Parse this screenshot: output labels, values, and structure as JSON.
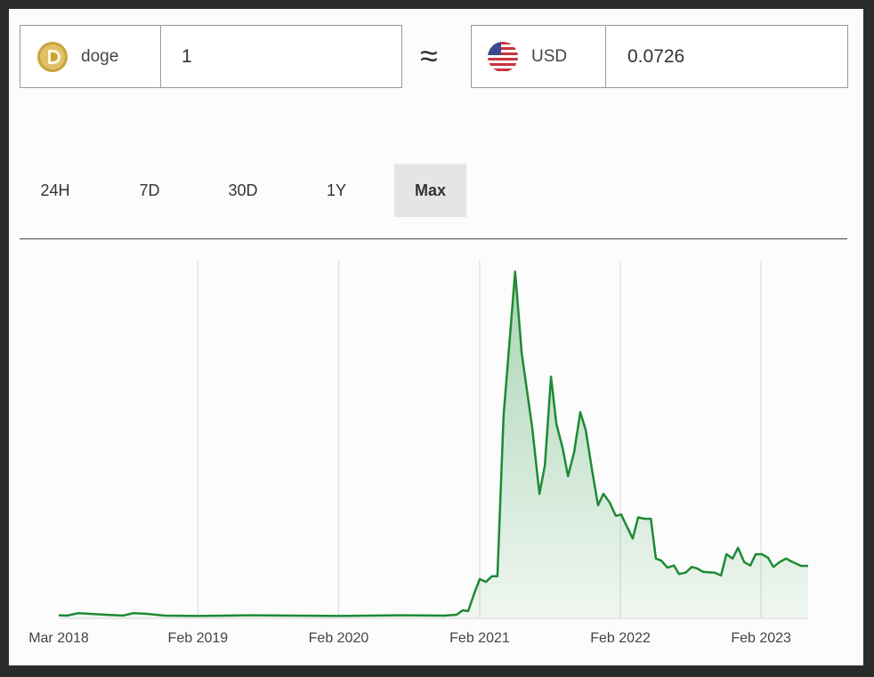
{
  "from": {
    "currency": "doge",
    "icon": "doge-coin-icon",
    "amount": "1"
  },
  "approx_symbol": "≈",
  "to": {
    "currency": "USD",
    "icon": "us-flag-icon",
    "amount": "0.0726"
  },
  "tabs": [
    {
      "label": "24H",
      "active": false
    },
    {
      "label": "7D",
      "active": false
    },
    {
      "label": "30D",
      "active": false
    },
    {
      "label": "1Y",
      "active": false
    },
    {
      "label": "Max",
      "active": true
    }
  ],
  "colors": {
    "line": "#1e8a34",
    "fill": "#2e9a4a",
    "active_tab": "#e5e5e5",
    "grid": "#e2e2e2"
  },
  "chart_data": {
    "type": "area",
    "grid": "vertical",
    "xlim": [
      "2018-02-05",
      "2023-06-03"
    ],
    "ylim": [
      0,
      0.5
    ],
    "ylabel": "",
    "xlabel": "",
    "x_ticks": [
      {
        "label": "Mar 2018",
        "date": "2018-02-05"
      },
      {
        "label": "Feb 2019",
        "date": "2019-02-01"
      },
      {
        "label": "Feb 2020",
        "date": "2020-02-01"
      },
      {
        "label": "Feb 2021",
        "date": "2021-02-01"
      },
      {
        "label": "Feb 2022",
        "date": "2022-02-01"
      },
      {
        "label": "Feb 2023",
        "date": "2023-02-01"
      }
    ],
    "points": [
      [
        "2018-02-05",
        0.003
      ],
      [
        "2018-02-26",
        0.0025
      ],
      [
        "2018-03-28",
        0.006
      ],
      [
        "2018-07-21",
        0.0025
      ],
      [
        "2018-08-18",
        0.006
      ],
      [
        "2018-09-22",
        0.005
      ],
      [
        "2018-11-07",
        0.0025
      ],
      [
        "2019-02-01",
        0.002
      ],
      [
        "2019-06-14",
        0.003
      ],
      [
        "2020-02-01",
        0.002
      ],
      [
        "2020-07-12",
        0.003
      ],
      [
        "2020-11-03",
        0.0025
      ],
      [
        "2020-12-03",
        0.0038
      ],
      [
        "2020-12-19",
        0.01
      ],
      [
        "2021-01-02",
        0.0088
      ],
      [
        "2021-01-18",
        0.034
      ],
      [
        "2021-02-01",
        0.054
      ],
      [
        "2021-02-17",
        0.05
      ],
      [
        "2021-03-05",
        0.058
      ],
      [
        "2021-03-19",
        0.058
      ],
      [
        "2021-04-04",
        0.284
      ],
      [
        "2021-05-04",
        0.487
      ],
      [
        "2021-05-21",
        0.372
      ],
      [
        "2021-06-17",
        0.268
      ],
      [
        "2021-07-06",
        0.174
      ],
      [
        "2021-07-20",
        0.214
      ],
      [
        "2021-08-05",
        0.339
      ],
      [
        "2021-08-19",
        0.272
      ],
      [
        "2021-09-04",
        0.239
      ],
      [
        "2021-09-18",
        0.199
      ],
      [
        "2021-10-04",
        0.233
      ],
      [
        "2021-10-20",
        0.289
      ],
      [
        "2021-11-03",
        0.264
      ],
      [
        "2021-11-19",
        0.209
      ],
      [
        "2021-12-05",
        0.158
      ],
      [
        "2021-12-19",
        0.174
      ],
      [
        "2022-01-04",
        0.162
      ],
      [
        "2022-01-20",
        0.143
      ],
      [
        "2022-02-03",
        0.145
      ],
      [
        "2022-03-05",
        0.111
      ],
      [
        "2022-03-19",
        0.141
      ],
      [
        "2022-04-04",
        0.139
      ],
      [
        "2022-04-21",
        0.139
      ],
      [
        "2022-05-04",
        0.083
      ],
      [
        "2022-05-18",
        0.08
      ],
      [
        "2022-06-03",
        0.07
      ],
      [
        "2022-06-20",
        0.073
      ],
      [
        "2022-07-03",
        0.061
      ],
      [
        "2022-07-20",
        0.063
      ],
      [
        "2022-08-05",
        0.071
      ],
      [
        "2022-08-19",
        0.069
      ],
      [
        "2022-09-04",
        0.064
      ],
      [
        "2022-10-04",
        0.063
      ],
      [
        "2022-10-20",
        0.059
      ],
      [
        "2022-11-03",
        0.089
      ],
      [
        "2022-11-19",
        0.083
      ],
      [
        "2022-12-03",
        0.098
      ],
      [
        "2022-12-19",
        0.078
      ],
      [
        "2023-01-04",
        0.073
      ],
      [
        "2023-01-18",
        0.089
      ],
      [
        "2023-02-03",
        0.089
      ],
      [
        "2023-02-19",
        0.084
      ],
      [
        "2023-03-05",
        0.071
      ],
      [
        "2023-03-21",
        0.078
      ],
      [
        "2023-04-07",
        0.083
      ],
      [
        "2023-04-20",
        0.079
      ],
      [
        "2023-05-16",
        0.0726
      ],
      [
        "2023-06-03",
        0.0726
      ]
    ]
  }
}
